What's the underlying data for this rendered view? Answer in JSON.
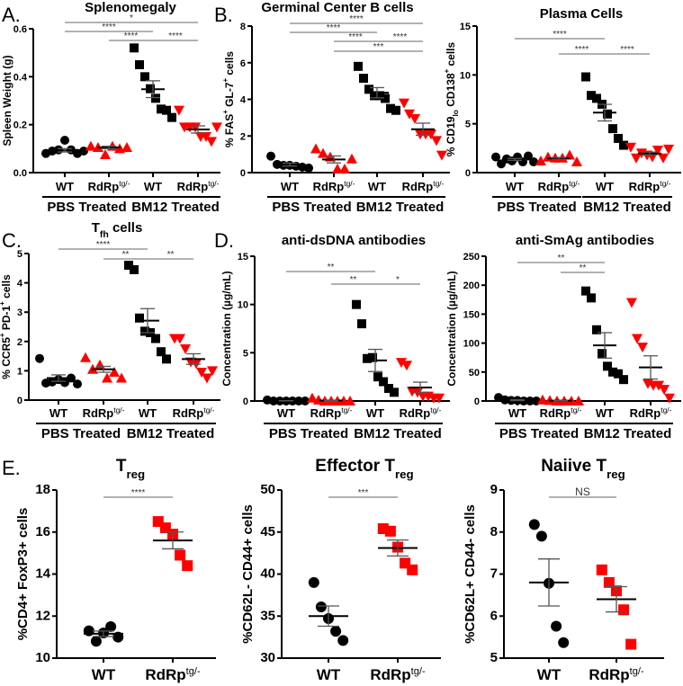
{
  "colors": {
    "wt": "#000000",
    "rdrp": "#ff0000",
    "sig": "#666666",
    "axis": "#000000"
  },
  "chart_data": [
    {
      "id": "A",
      "letter": "A.",
      "type": "scatter",
      "title": [
        {
          "t": "Splenomegaly"
        }
      ],
      "ylabel": [
        {
          "t": "Spleen Weight (g)"
        }
      ],
      "ylim": [
        0,
        0.6
      ],
      "yticks": [
        "0.0",
        "0.2",
        "0.4",
        "0.6"
      ],
      "ytick_values": [
        0,
        0.2,
        0.4,
        0.6
      ],
      "groups": [
        {
          "label": "WT",
          "sup": "",
          "marker": "circle",
          "color": "wt",
          "values": [
            0.08,
            0.09,
            0.095,
            0.135,
            0.095,
            0.08,
            0.09
          ],
          "mean": 0.093,
          "sem": 0.007
        },
        {
          "label": "RdRp",
          "sup": "tg/-",
          "marker": "triangle-up",
          "color": "rdrp",
          "values": [
            0.11,
            0.105,
            0.075,
            0.11,
            0.1,
            0.105
          ],
          "mean": 0.105,
          "sem": 0.005
        },
        {
          "label": "WT",
          "sup": "",
          "marker": "square",
          "color": "wt",
          "values": [
            0.52,
            0.45,
            0.4,
            0.35,
            0.31,
            0.265,
            0.26,
            0.23
          ],
          "mean": 0.348,
          "sem": 0.035
        },
        {
          "label": "RdRp",
          "sup": "tg/-",
          "marker": "triangle-down",
          "color": "rdrp",
          "values": [
            0.26,
            0.19,
            0.19,
            0.19,
            0.15,
            0.15,
            0.13,
            0.19
          ],
          "mean": 0.18,
          "sem": 0.015
        }
      ],
      "treatments": [
        {
          "label": "PBS Treated",
          "from": 0,
          "to": 1
        },
        {
          "label": "BM12 Treated",
          "from": 2,
          "to": 3
        }
      ],
      "significance": [
        {
          "from": 0,
          "to": 3,
          "label": "*"
        },
        {
          "from": 0,
          "to": 2,
          "label": "****"
        },
        {
          "from": 1,
          "to": 2,
          "label": "****"
        },
        {
          "from": 2,
          "to": 3,
          "label": "****"
        }
      ]
    },
    {
      "id": "B",
      "letter": "B.",
      "type": "scatter",
      "title": [
        {
          "t": "Germinal Center B cells"
        }
      ],
      "ylabel": [
        {
          "t": "% FAS"
        },
        {
          "t": "+",
          "sup": true
        },
        {
          "t": " GL-7"
        },
        {
          "t": "+",
          "sup": true
        },
        {
          "t": " cells"
        }
      ],
      "ylim": [
        0,
        8
      ],
      "yticks": [
        "0",
        "2",
        "4",
        "6",
        "8"
      ],
      "ytick_values": [
        0,
        2,
        4,
        6,
        8
      ],
      "groups": [
        {
          "label": "WT",
          "sup": "",
          "marker": "circle",
          "color": "wt",
          "values": [
            0.9,
            0.45,
            0.4,
            0.4,
            0.35,
            0.3,
            0.25
          ],
          "mean": 0.44,
          "sem": 0.08
        },
        {
          "label": "RdRp",
          "sup": "tg/-",
          "marker": "triangle-up",
          "color": "rdrp",
          "values": [
            1.3,
            1.05,
            0.85,
            0.2,
            0.2,
            0.75
          ],
          "mean": 0.72,
          "sem": 0.19
        },
        {
          "label": "WT",
          "sup": "",
          "marker": "square",
          "color": "wt",
          "values": [
            5.8,
            5.15,
            4.55,
            4.2,
            4.2,
            4.05,
            3.5,
            3.4
          ],
          "mean": 4.36,
          "sem": 0.28
        },
        {
          "label": "RdRp",
          "sup": "tg/-",
          "marker": "triangle-down",
          "color": "rdrp",
          "values": [
            3.8,
            3.2,
            2.95,
            2.1,
            2.1,
            2.1,
            1.75,
            0.95
          ],
          "mean": 2.37,
          "sem": 0.33
        }
      ],
      "treatments": [
        {
          "label": "PBS Treated",
          "from": 0,
          "to": 1
        },
        {
          "label": "BM12 Treated",
          "from": 2,
          "to": 3
        }
      ],
      "significance": [
        {
          "from": 0,
          "to": 3,
          "label": "****"
        },
        {
          "from": 0,
          "to": 2,
          "label": "****"
        },
        {
          "from": 1,
          "to": 2,
          "label": "****"
        },
        {
          "from": 2,
          "to": 3,
          "label": "****"
        },
        {
          "from": 1,
          "to": 3,
          "label": "***"
        }
      ]
    },
    {
      "id": "B2",
      "letter": "",
      "type": "scatter",
      "title": [
        {
          "t": "Plasma Cells"
        }
      ],
      "ylabel": [
        {
          "t": "% CD19"
        },
        {
          "t": "lo",
          "sub": true
        },
        {
          "t": " CD138"
        },
        {
          "t": "+",
          "sup": true
        },
        {
          "t": " cells"
        }
      ],
      "ylim": [
        0,
        15
      ],
      "yticks": [
        "0",
        "5",
        "10",
        "15"
      ],
      "ytick_values": [
        0,
        5,
        10,
        15
      ],
      "groups": [
        {
          "label": "WT",
          "sup": "",
          "marker": "circle",
          "color": "wt",
          "values": [
            1.6,
            0.9,
            1.4,
            1.2,
            1.6,
            1.1,
            1.7,
            1.1
          ],
          "mean": 1.35,
          "sem": 0.1
        },
        {
          "label": "RdRp",
          "sup": "tg/-",
          "marker": "triangle-up",
          "color": "rdrp",
          "values": [
            1.2,
            1.6,
            1.5,
            1.5,
            1.8,
            1.1
          ],
          "mean": 1.45,
          "sem": 0.1
        },
        {
          "label": "WT",
          "sup": "",
          "marker": "square",
          "color": "wt",
          "values": [
            9.8,
            7.9,
            7.6,
            7.0,
            6.0,
            4.5,
            3.5,
            2.8
          ],
          "mean": 6.14,
          "sem": 0.85
        },
        {
          "label": "RdRp",
          "sup": "tg/-",
          "marker": "triangle-down",
          "color": "rdrp",
          "values": [
            2.6,
            1.5,
            2.0,
            1.8,
            1.6,
            2.3,
            1.5,
            2.4
          ],
          "mean": 1.96,
          "sem": 0.15
        }
      ],
      "treatments": [
        {
          "label": "PBS Treated",
          "from": 0,
          "to": 1
        },
        {
          "label": "BM12 Treated",
          "from": 2,
          "to": 3
        }
      ],
      "significance": [
        {
          "from": 0,
          "to": 2,
          "label": "****"
        },
        {
          "from": 1,
          "to": 2,
          "label": "****"
        },
        {
          "from": 2,
          "to": 3,
          "label": "****"
        }
      ]
    },
    {
      "id": "C",
      "letter": "C.",
      "type": "scatter",
      "title": [
        {
          "t": "T"
        },
        {
          "t": "fh",
          "sub": true
        },
        {
          "t": " cells"
        }
      ],
      "ylabel": [
        {
          "t": "% CCR5"
        },
        {
          "t": "+",
          "sup": true
        },
        {
          "t": " PD-1"
        },
        {
          "t": "+",
          "sup": true
        },
        {
          "t": " cells"
        }
      ],
      "ylim": [
        0,
        5
      ],
      "yticks": [
        "0",
        "1",
        "2",
        "3",
        "4",
        "5"
      ],
      "ytick_values": [
        0,
        1,
        2,
        3,
        4,
        5
      ],
      "groups": [
        {
          "label": "WT",
          "sup": "",
          "marker": "circle",
          "color": "wt",
          "values": [
            1.42,
            0.58,
            0.62,
            0.7,
            0.6,
            0.75,
            0.55
          ],
          "mean": 0.75,
          "sem": 0.11
        },
        {
          "label": "RdRp",
          "sup": "tg/-",
          "marker": "triangle-up",
          "color": "rdrp",
          "values": [
            1.45,
            1.05,
            1.2,
            0.75,
            0.95,
            0.75
          ],
          "mean": 1.05,
          "sem": 0.1
        },
        {
          "label": "WT",
          "sup": "",
          "marker": "square",
          "color": "wt",
          "values": [
            4.6,
            4.45,
            2.8,
            2.35,
            2.3,
            2.1,
            1.65,
            1.4
          ],
          "mean": 2.71,
          "sem": 0.41
        },
        {
          "label": "RdRp",
          "sup": "tg/-",
          "marker": "triangle-down",
          "color": "rdrp",
          "values": [
            2.1,
            2.1,
            1.75,
            1.3,
            1.25,
            0.95,
            0.75,
            1.0
          ],
          "mean": 1.4,
          "sem": 0.18
        }
      ],
      "treatments": [
        {
          "label": "PBS Treated",
          "from": 0,
          "to": 1
        },
        {
          "label": "BM12 Treated",
          "from": 2,
          "to": 3
        }
      ],
      "significance": [
        {
          "from": 0,
          "to": 2,
          "label": "****"
        },
        {
          "from": 1,
          "to": 2,
          "label": "**"
        },
        {
          "from": 2,
          "to": 3,
          "label": "**"
        }
      ]
    },
    {
      "id": "D",
      "letter": "D.",
      "type": "scatter",
      "title": [
        {
          "t": "anti-dsDNA antibodies"
        }
      ],
      "ylabel": [
        {
          "t": "Concentration (µg/mL)"
        }
      ],
      "ylim": [
        0,
        15
      ],
      "yticks": [
        "0",
        "5",
        "10",
        "15"
      ],
      "ytick_values": [
        0,
        5,
        10,
        15
      ],
      "groups": [
        {
          "label": "WT",
          "sup": "",
          "marker": "circle",
          "color": "wt",
          "values": [
            0.1,
            0,
            0,
            0,
            0,
            0,
            0
          ],
          "mean": 0.02,
          "sem": 0.01
        },
        {
          "label": "RdRp",
          "sup": "tg/-",
          "marker": "triangle-up",
          "color": "rdrp",
          "values": [
            0.3,
            0.1,
            0,
            0,
            0,
            0,
            0
          ],
          "mean": 0.05,
          "sem": 0.04
        },
        {
          "label": "WT",
          "sup": "",
          "marker": "square",
          "color": "wt",
          "values": [
            10,
            8,
            4.4,
            4.5,
            2.5,
            2,
            1.3,
            0.9
          ],
          "mean": 4.2,
          "sem": 1.15
        },
        {
          "label": "RdRp",
          "sup": "tg/-",
          "marker": "triangle-down",
          "color": "rdrp",
          "values": [
            4,
            3.7,
            1,
            0.9,
            0.5,
            0.5,
            0.3,
            0.3
          ],
          "mean": 1.4,
          "sem": 0.55
        }
      ],
      "treatments": [
        {
          "label": "PBS Treated",
          "from": 0,
          "to": 1
        },
        {
          "label": "BM12 Treated",
          "from": 2,
          "to": 3
        }
      ],
      "significance": [
        {
          "from": 0,
          "to": 2,
          "label": "**"
        },
        {
          "from": 1,
          "to": 2,
          "label": "**"
        },
        {
          "from": 2,
          "to": 3,
          "label": "*"
        }
      ]
    },
    {
      "id": "D2",
      "letter": "",
      "type": "scatter",
      "title": [
        {
          "t": "anti-SmAg antibodies"
        }
      ],
      "ylabel": [
        {
          "t": "Concentration (µg/mL)"
        }
      ],
      "ylim": [
        0,
        250
      ],
      "yticks": [
        "0",
        "50",
        "100",
        "150",
        "200",
        "250"
      ],
      "ytick_values": [
        0,
        50,
        100,
        150,
        200,
        250
      ],
      "groups": [
        {
          "label": "WT",
          "sup": "",
          "marker": "circle",
          "color": "wt",
          "values": [
            6,
            2,
            1,
            1,
            0,
            0,
            0
          ],
          "mean": 1.4,
          "sem": 0.8
        },
        {
          "label": "RdRp",
          "sup": "tg/-",
          "marker": "triangle-up",
          "color": "rdrp",
          "values": [
            2,
            1,
            0,
            0,
            0,
            0
          ],
          "mean": 0.5,
          "sem": 0.3
        },
        {
          "label": "WT",
          "sup": "",
          "marker": "square",
          "color": "wt",
          "values": [
            190,
            178,
            123,
            82,
            60,
            50,
            47,
            37
          ],
          "mean": 96,
          "sem": 22
        },
        {
          "label": "RdRp",
          "sup": "tg/-",
          "marker": "triangle-down",
          "color": "rdrp",
          "values": [
            170,
            108,
            93,
            30,
            27,
            27,
            20,
            5
          ],
          "mean": 58,
          "sem": 20
        }
      ],
      "treatments": [
        {
          "label": "PBS Treated",
          "from": 0,
          "to": 1
        },
        {
          "label": "BM12 Treated",
          "from": 2,
          "to": 3
        }
      ],
      "significance": [
        {
          "from": 0,
          "to": 2,
          "label": "**"
        },
        {
          "from": 1,
          "to": 2,
          "label": "**"
        }
      ]
    },
    {
      "id": "E",
      "letter": "E.",
      "type": "scatter",
      "title": [
        {
          "t": "T"
        },
        {
          "t": "reg",
          "sub": true
        }
      ],
      "ylabel": [
        {
          "t": "%CD4+ FoxP3+ cells"
        }
      ],
      "ylim": [
        10,
        18
      ],
      "yticks": [
        "10",
        "12",
        "14",
        "16",
        "18"
      ],
      "ytick_values": [
        10,
        12,
        14,
        16,
        18
      ],
      "groups": [
        {
          "label": "WT",
          "sup": "",
          "marker": "circle",
          "color": "wt",
          "values": [
            11.3,
            10.8,
            11.2,
            11.5,
            11.0
          ],
          "mean": 11.16,
          "sem": 0.13
        },
        {
          "label": "RdRp",
          "sup": "tg/-",
          "marker": "square",
          "color": "rdrp",
          "values": [
            16.5,
            16.2,
            15.9,
            14.9,
            14.4
          ],
          "mean": 15.6,
          "sem": 0.4
        }
      ],
      "treatments": [],
      "significance": [
        {
          "from": 0,
          "to": 1,
          "label": "****"
        }
      ]
    },
    {
      "id": "E2",
      "letter": "",
      "type": "scatter",
      "title": [
        {
          "t": "Effector T"
        },
        {
          "t": "reg",
          "sub": true
        }
      ],
      "ylabel": [
        {
          "t": "%CD62L- CD44+ cells"
        }
      ],
      "ylim": [
        30,
        50
      ],
      "yticks": [
        "30",
        "35",
        "40",
        "45",
        "50"
      ],
      "ytick_values": [
        30,
        35,
        40,
        45,
        50
      ],
      "groups": [
        {
          "label": "WT",
          "sup": "",
          "marker": "circle",
          "color": "wt",
          "values": [
            39,
            36.1,
            34.7,
            33.2,
            32.1
          ],
          "mean": 35.0,
          "sem": 1.2
        },
        {
          "label": "RdRp",
          "sup": "tg/-",
          "marker": "square",
          "color": "rdrp",
          "values": [
            45.4,
            45.1,
            43.2,
            41.3,
            40.5
          ],
          "mean": 43.1,
          "sem": 0.95
        }
      ],
      "treatments": [],
      "significance": [
        {
          "from": 0,
          "to": 1,
          "label": "***"
        }
      ]
    },
    {
      "id": "E3",
      "letter": "",
      "type": "scatter",
      "title": [
        {
          "t": "Naiive T"
        },
        {
          "t": "reg",
          "sub": true
        }
      ],
      "ylabel": [
        {
          "t": "%CD62L+ CD44- cells"
        }
      ],
      "ylim": [
        5,
        9
      ],
      "yticks": [
        "5",
        "6",
        "7",
        "8",
        "9"
      ],
      "ytick_values": [
        5,
        6,
        7,
        8,
        9
      ],
      "groups": [
        {
          "label": "WT",
          "sup": "",
          "marker": "circle",
          "color": "wt",
          "values": [
            8.18,
            7.9,
            6.78,
            5.76,
            5.37
          ],
          "mean": 6.8,
          "sem": 0.56
        },
        {
          "label": "RdRp",
          "sup": "tg/-",
          "marker": "square",
          "color": "rdrp",
          "values": [
            7.1,
            6.8,
            6.6,
            6.15,
            5.33
          ],
          "mean": 6.4,
          "sem": 0.3
        }
      ],
      "treatments": [],
      "significance": [
        {
          "from": 0,
          "to": 1,
          "label": "NS"
        }
      ]
    }
  ]
}
